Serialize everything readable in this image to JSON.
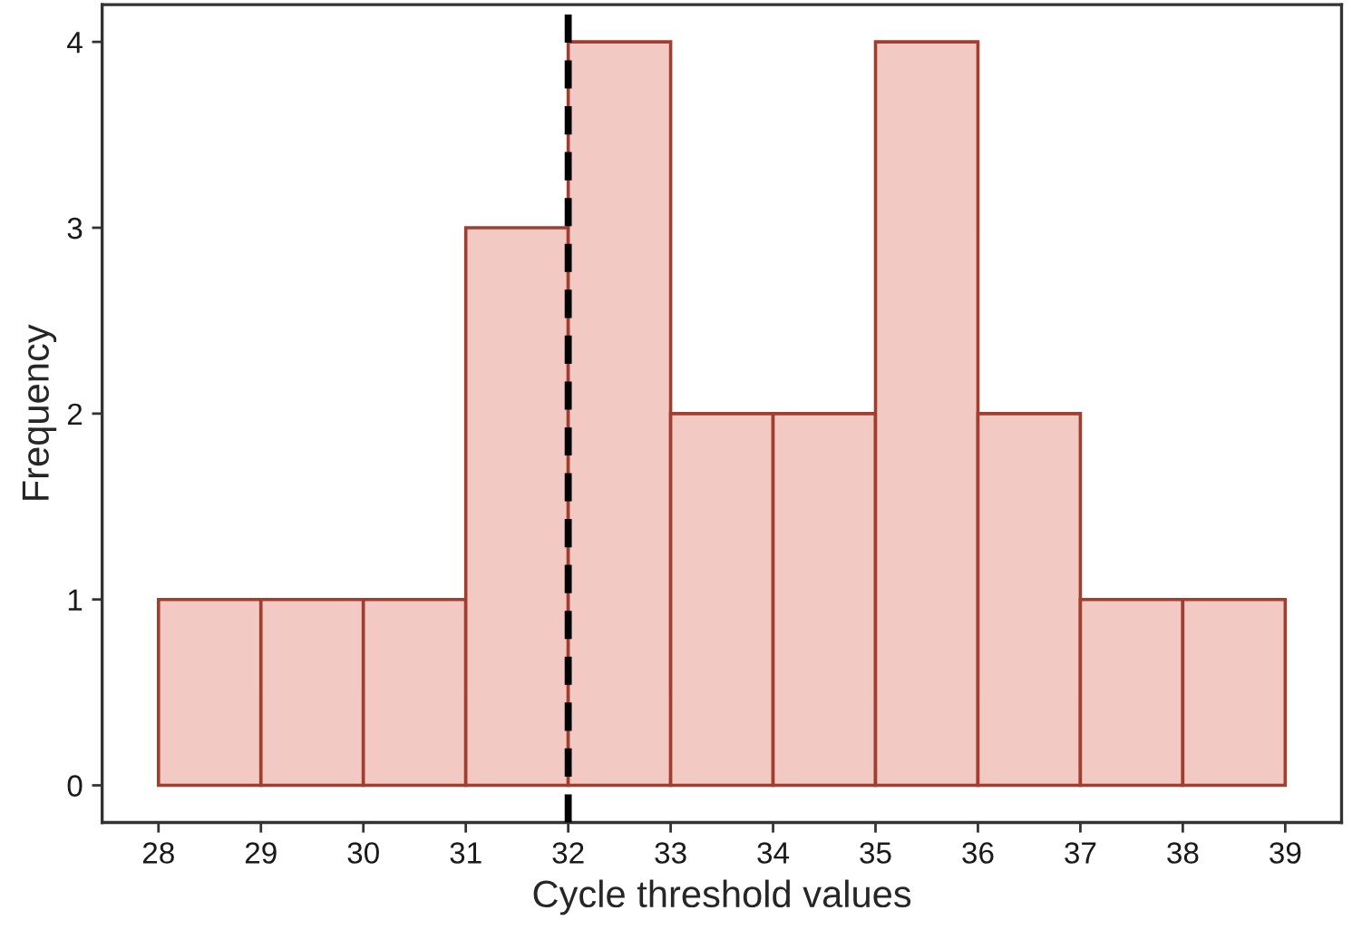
{
  "chart_data": {
    "type": "histogram",
    "xlabel": "Cycle threshold values",
    "ylabel": "Frequency",
    "bins": [
      28,
      29,
      30,
      31,
      32,
      33,
      34,
      35,
      36,
      37,
      38,
      39
    ],
    "values": [
      1,
      1,
      1,
      3,
      4,
      2,
      2,
      4,
      2,
      1,
      1
    ],
    "color": "#f2c9c3",
    "xlim": [
      27.45,
      39.55
    ],
    "xticks": [
      28,
      29,
      30,
      31,
      32,
      33,
      34,
      35,
      36,
      37,
      38,
      39
    ],
    "ylim": [
      -0.2,
      4.2
    ],
    "yticks": [
      0,
      1,
      2,
      3,
      4
    ],
    "grid": false,
    "ref_lines": [
      {
        "axis": "x",
        "value": 32,
        "color": "#000000",
        "line_style": "dashed"
      }
    ]
  }
}
